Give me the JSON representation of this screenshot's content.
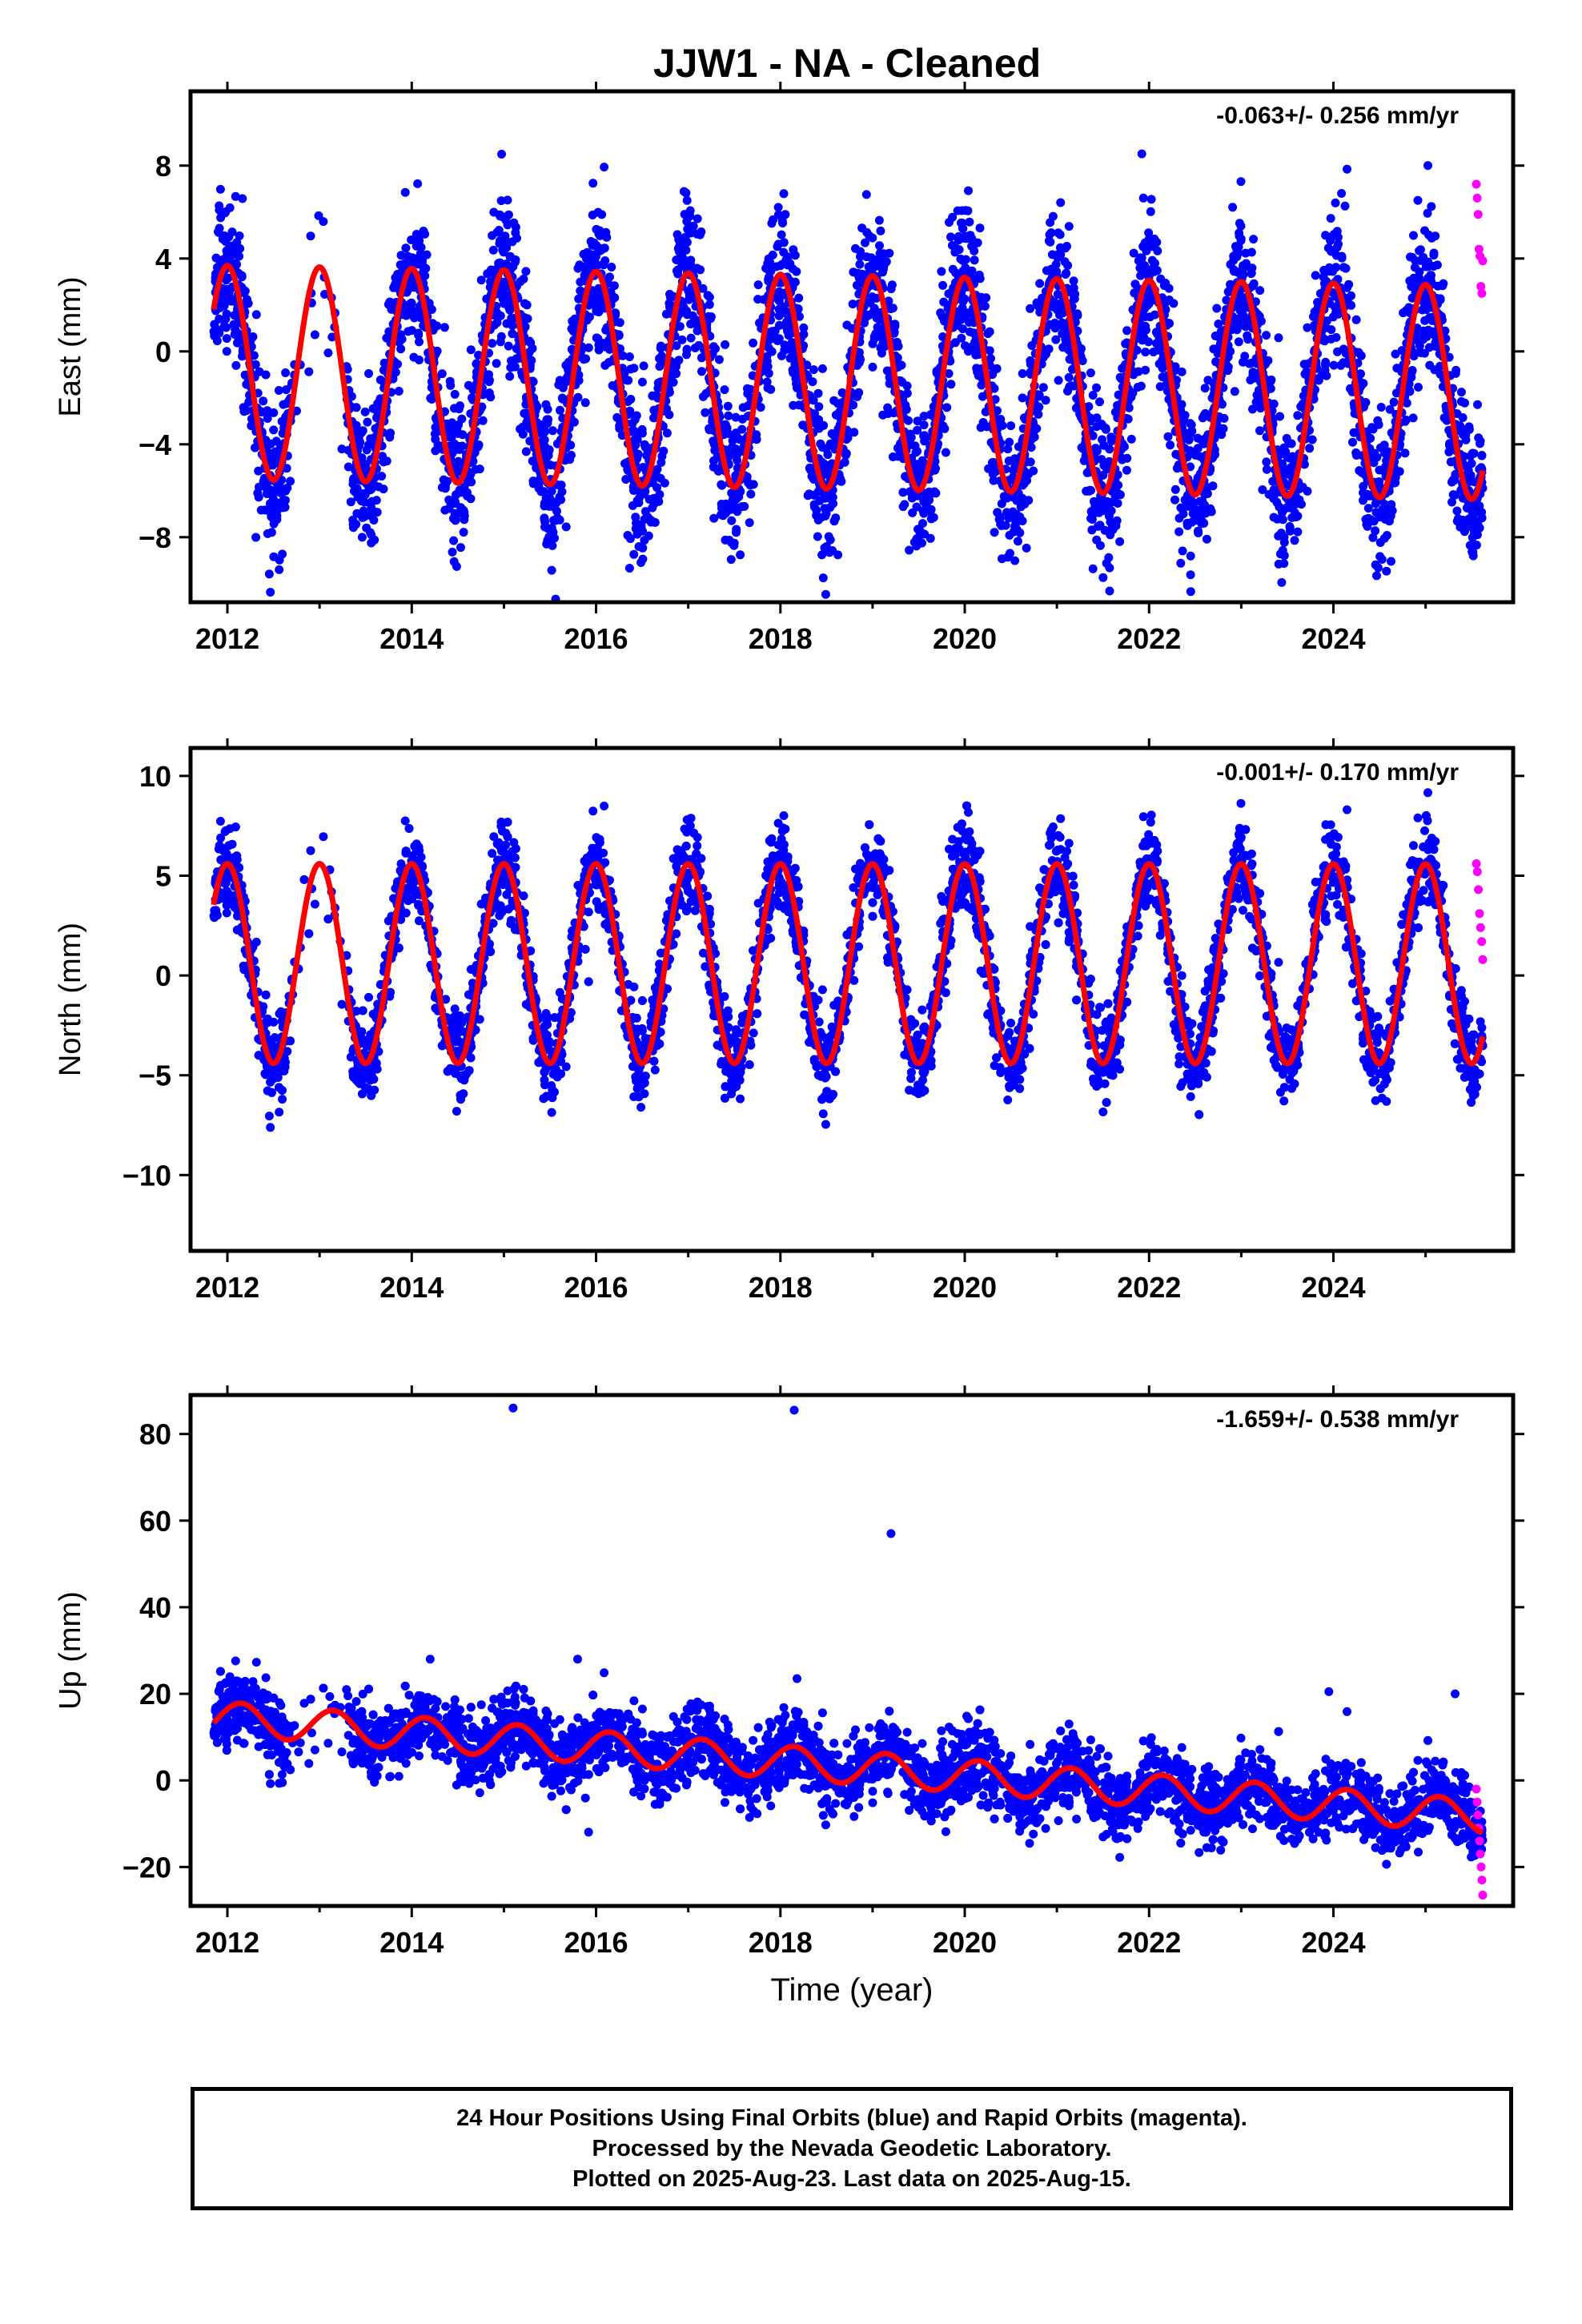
{
  "title": "JJW1  - NA - Cleaned",
  "footer": {
    "line1": "24 Hour Positions Using Final Orbits (blue) and Rapid Orbits (magenta).",
    "line2": "Processed by the Nevada Geodetic Laboratory.",
    "line3": "Plotted on 2025-Aug-23. Last data on 2025-Aug-15."
  },
  "colors": {
    "final": "#0000ff",
    "rapid": "#ff00ff",
    "model": "#ff0000",
    "frame": "#000000"
  },
  "chart_data": [
    {
      "type": "scatter",
      "component": "East",
      "ylabel": "East (mm)",
      "xlabel": "",
      "rate_label": "-0.063+/- 0.256 mm/yr",
      "xlim": [
        2011.6,
        2025.95
      ],
      "ylim": [
        -10.8,
        11.2
      ],
      "xticks": [
        "2012",
        "2014",
        "2016",
        "2018",
        "2020",
        "2022",
        "2024"
      ],
      "yticks": [
        "8",
        "4",
        "0",
        "−4",
        "−8"
      ],
      "ytick_values": [
        8,
        4,
        0,
        -4,
        -8
      ],
      "data_start": 2011.85,
      "data_end": 2025.62,
      "gap": [
        2012.72,
        2013.28
      ],
      "series": [
        {
          "name": "Final Orbits",
          "color": "blue",
          "model": {
            "offset": -1.0,
            "trend": -0.063,
            "amp": 4.6,
            "phase_year": 0.5,
            "noise": 1.6,
            "num_points": 4800
          }
        },
        {
          "name": "Rapid Orbits",
          "color": "magenta",
          "x_range": [
            2025.55,
            2025.62
          ],
          "values": [
            7.2,
            6.6,
            5.9,
            4.4,
            4.1,
            2.8,
            2.5,
            3.9
          ]
        }
      ],
      "fit": {
        "name": "Model",
        "color": "red",
        "offset": -0.9,
        "amp": 4.6,
        "phase_year": 0.5,
        "trend": -0.063
      }
    },
    {
      "type": "scatter",
      "component": "North",
      "ylabel": "North (mm)",
      "xlabel": "",
      "rate_label": "-0.001+/- 0.170 mm/yr",
      "xlim": [
        2011.6,
        2025.95
      ],
      "ylim": [
        -13.8,
        11.4
      ],
      "xticks": [
        "2012",
        "2014",
        "2016",
        "2018",
        "2020",
        "2022",
        "2024"
      ],
      "yticks": [
        "10",
        "5",
        "0",
        "−5",
        "−10"
      ],
      "ytick_values": [
        10,
        5,
        0,
        -5,
        -10
      ],
      "data_start": 2011.85,
      "data_end": 2025.62,
      "gap": [
        2012.72,
        2013.28
      ],
      "series": [
        {
          "name": "Final Orbits",
          "color": "blue",
          "model": {
            "offset": 0.6,
            "trend": -0.001,
            "amp": 5.0,
            "phase_year": 0.5,
            "noise": 1.1,
            "num_points": 4800
          }
        },
        {
          "name": "Rapid Orbits",
          "color": "magenta",
          "x_range": [
            2025.55,
            2025.62
          ],
          "values": [
            5.6,
            5.2,
            4.3,
            3.1,
            2.4,
            1.7,
            0.8
          ]
        }
      ],
      "fit": {
        "name": "Model",
        "color": "red",
        "offset": 0.6,
        "amp": 5.0,
        "phase_year": 0.5,
        "trend": -0.001
      }
    },
    {
      "type": "scatter",
      "component": "Up",
      "ylabel": "Up (mm)",
      "xlabel": "Time (year)",
      "rate_label": "-1.659+/- 0.538 mm/yr",
      "xlim": [
        2011.6,
        2025.95
      ],
      "ylim": [
        -29,
        89
      ],
      "xticks": [
        "2012",
        "2014",
        "2016",
        "2018",
        "2020",
        "2022",
        "2024"
      ],
      "yticks": [
        "80",
        "60",
        "40",
        "20",
        "0",
        "−20"
      ],
      "ytick_values": [
        80,
        60,
        40,
        20,
        0,
        -20
      ],
      "data_start": 2011.85,
      "data_end": 2025.62,
      "gap": [
        2012.72,
        2013.28
      ],
      "series": [
        {
          "name": "Final Orbits",
          "color": "blue",
          "model": {
            "offset": 14.5,
            "trend": -1.659,
            "amp": 3.8,
            "phase_year": 0.65,
            "noise": 4.2,
            "num_points": 4800
          }
        },
        {
          "name": "Rapid Orbits",
          "color": "magenta",
          "x_range": [
            2025.55,
            2025.62
          ],
          "values": [
            -2,
            -5,
            -8,
            -11,
            -14,
            -17,
            -20,
            -23,
            -26.5
          ]
        },
        {
          "name": "Outliers",
          "color": "blue",
          "points": [
            [
              2015.1,
              86
            ],
            [
              2018.15,
              85.5
            ],
            [
              2019.2,
              57
            ],
            [
              2018.18,
              23.5
            ],
            [
              2023.95,
              20.5
            ],
            [
              2025.32,
              20
            ],
            [
              2014.2,
              28
            ],
            [
              2015.8,
              28
            ]
          ]
        }
      ],
      "fit": {
        "name": "Model",
        "color": "red",
        "offset": 14.5,
        "amp": 3.8,
        "phase_year": 0.65,
        "trend": -1.659
      }
    }
  ]
}
